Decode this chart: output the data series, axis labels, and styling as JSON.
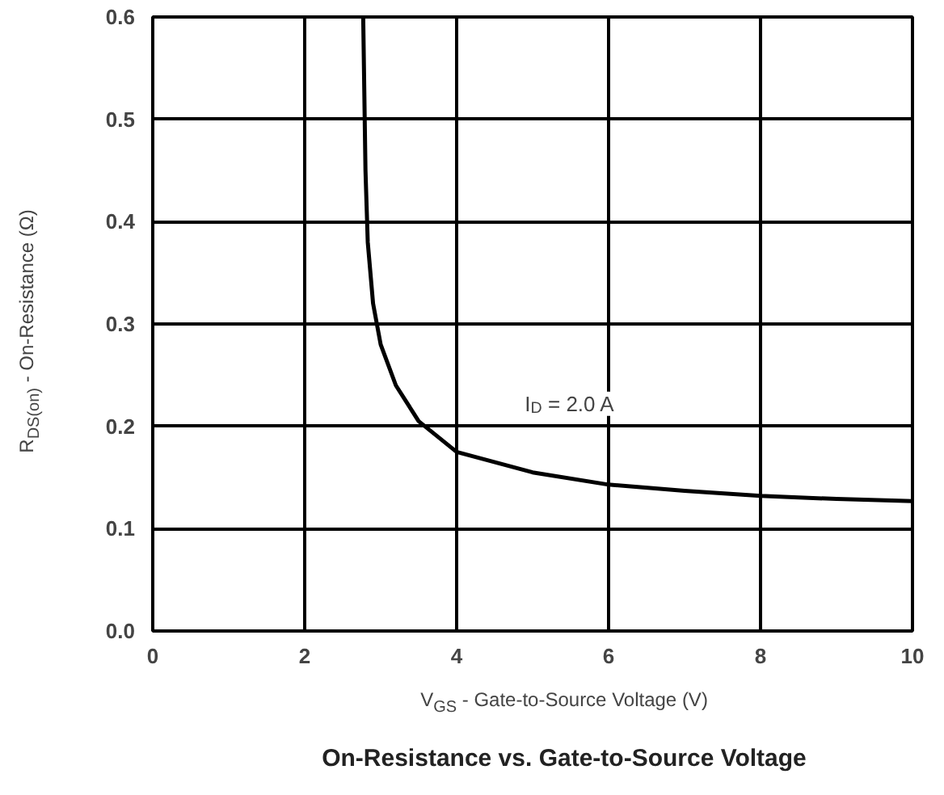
{
  "chart_data": {
    "type": "line",
    "title": "On-Resistance vs. Gate-to-Source Voltage",
    "xlabel": "V$_{GS}$ - Gate-to-Source Voltage (V)",
    "ylabel": "R$_{DS(on)}$ - On-Resistance (Ω)",
    "x": [
      2.77,
      2.8,
      2.83,
      2.9,
      3.0,
      3.2,
      3.5,
      4,
      5,
      6,
      7,
      8,
      9,
      10
    ],
    "series": [
      {
        "color": "#000000",
        "values": [
          0.6,
          0.45,
          0.38,
          0.32,
          0.28,
          0.24,
          0.205,
          0.175,
          0.155,
          0.143,
          0.137,
          0.132,
          0.129,
          0.127
        ]
      }
    ],
    "annotations": [
      "I$_{D}$ = 2.0 A"
    ],
    "xlim": [
      0,
      10
    ],
    "ylim": [
      0,
      0.6
    ],
    "xticks": [
      0,
      2,
      4,
      6,
      8,
      10
    ],
    "yticks": [
      {
        "value": 0,
        "label": "0.0"
      },
      0.1,
      0.2,
      0.3,
      0.4,
      0.5,
      0.6
    ],
    "grid": true,
    "marker": "none",
    "line_style": "solid"
  }
}
